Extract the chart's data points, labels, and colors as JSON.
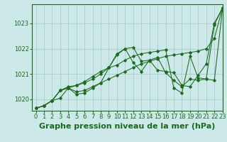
{
  "title": "Graphe pression niveau de la mer (hPa)",
  "background_color": "#cce8e8",
  "grid_color": "#aacccc",
  "line_color": "#1a6b1a",
  "xlim": [
    -0.5,
    23
  ],
  "ylim": [
    1019.55,
    1023.75
  ],
  "yticks": [
    1020,
    1021,
    1022,
    1023
  ],
  "xticks": [
    0,
    1,
    2,
    3,
    4,
    5,
    6,
    7,
    8,
    9,
    10,
    11,
    12,
    13,
    14,
    15,
    16,
    17,
    18,
    19,
    20,
    21,
    22,
    23
  ],
  "series": [
    [
      1019.65,
      1019.75,
      1019.95,
      1020.05,
      1020.45,
      1020.3,
      1020.35,
      1020.5,
      1020.65,
      1020.8,
      1020.95,
      1021.1,
      1021.25,
      1021.4,
      1021.5,
      1021.6,
      1021.7,
      1021.75,
      1021.8,
      1021.85,
      1021.9,
      1022.0,
      1022.4,
      1023.6
    ],
    [
      1019.65,
      1019.75,
      1019.95,
      1020.35,
      1020.45,
      1020.55,
      1020.65,
      1020.8,
      1021.0,
      1021.25,
      1021.8,
      1022.0,
      1022.05,
      1021.5,
      1021.55,
      1021.15,
      1021.1,
      1021.05,
      1020.55,
      1020.5,
      1020.95,
      1021.4,
      1023.0,
      1023.6
    ],
    [
      1019.65,
      1019.75,
      1019.95,
      1020.35,
      1020.45,
      1020.2,
      1020.25,
      1020.45,
      1020.65,
      1021.25,
      1021.75,
      1022.0,
      1021.45,
      1021.1,
      1021.55,
      1021.65,
      1021.05,
      1020.75,
      1020.5,
      1020.8,
      1020.75,
      1020.8,
      1022.95,
      1023.6
    ],
    [
      1019.65,
      1019.75,
      1019.95,
      1020.35,
      1020.5,
      1020.55,
      1020.7,
      1020.9,
      1021.1,
      1021.25,
      1021.35,
      1021.55,
      1021.7,
      1021.8,
      1021.85,
      1021.9,
      1021.95,
      1020.45,
      1020.25,
      1021.7,
      1020.85,
      1020.8,
      1020.75,
      1023.55
    ]
  ],
  "font_color": "#1a6b1a",
  "title_fontsize": 8,
  "tick_fontsize": 6
}
